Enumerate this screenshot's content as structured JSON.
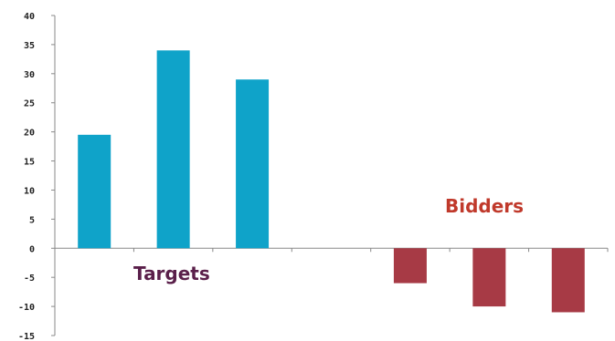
{
  "chart_data": {
    "type": "bar",
    "categories": [
      "",
      "",
      "",
      "",
      "",
      "",
      ""
    ],
    "values": [
      19.5,
      34,
      29,
      null,
      -6,
      -10,
      -11
    ],
    "ylim": [
      -15,
      40
    ],
    "yticks": [
      40,
      35,
      30,
      25,
      20,
      15,
      10,
      5,
      0,
      -5,
      -10,
      -15
    ],
    "annotations": [
      {
        "text": "Targets",
        "color": "#5a1f4a"
      },
      {
        "text": "Bidders",
        "color": "#c0392b"
      }
    ],
    "colors": {
      "positive": "#0fa3c9",
      "negative": "#a73a45",
      "axis": "#888888"
    },
    "grid": false,
    "legend": "none"
  }
}
